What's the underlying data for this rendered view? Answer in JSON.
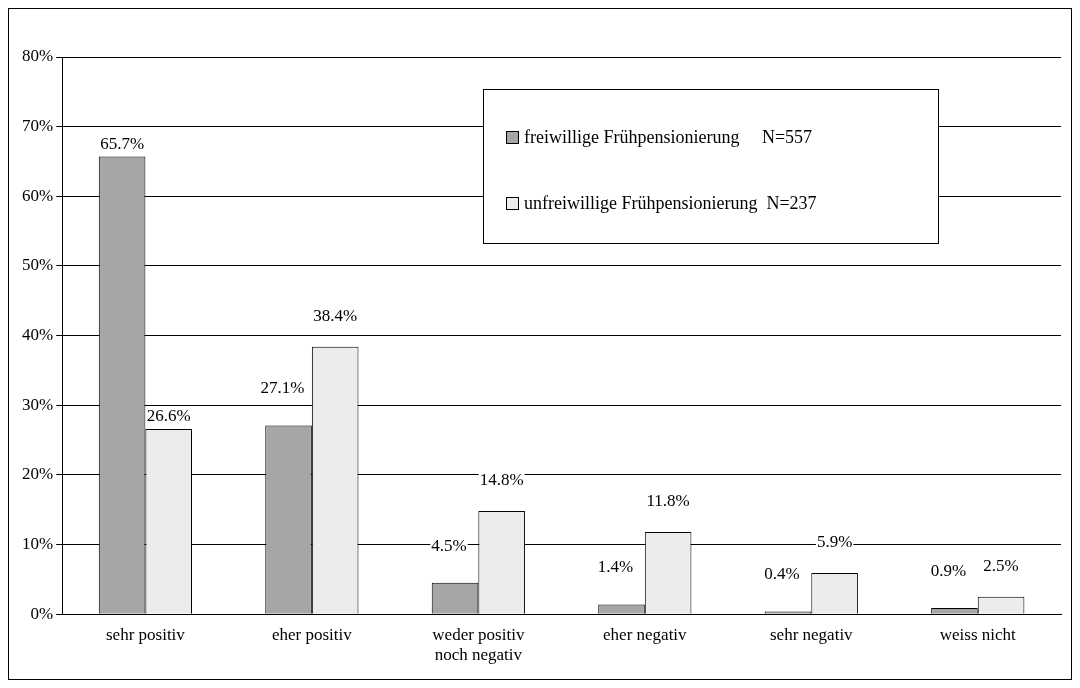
{
  "chart_data": {
    "type": "bar",
    "categories": [
      "sehr positiv",
      "eher positiv",
      "weder positiv noch negativ",
      "eher negativ",
      "sehr negativ",
      "weiss nicht"
    ],
    "series": [
      {
        "name": "freiwillige Frühpensionierung     N=557",
        "color": "#a6a6a6",
        "values": [
          65.7,
          27.1,
          4.5,
          1.4,
          0.4,
          0.9
        ],
        "value_labels": [
          "65.7%",
          "27.1%",
          "4.5%",
          "1.4%",
          "0.4%",
          "0.9%"
        ]
      },
      {
        "name": "unfreiwillige Frühpensionierung  N=237",
        "color": "#ececec",
        "values": [
          26.6,
          38.4,
          14.8,
          11.8,
          5.9,
          2.5
        ],
        "value_labels": [
          "26.6%",
          "38.4%",
          "14.8%",
          "11.8%",
          "5.9%",
          "2.5%"
        ]
      }
    ],
    "ylim": [
      0,
      80
    ],
    "yticks": [
      {
        "value": 0,
        "label": "0%"
      },
      {
        "value": 10,
        "label": "10%"
      },
      {
        "value": 20,
        "label": "20%"
      },
      {
        "value": 30,
        "label": "30%"
      },
      {
        "value": 40,
        "label": "40%"
      },
      {
        "value": 50,
        "label": "50%"
      },
      {
        "value": 60,
        "label": "60%"
      },
      {
        "value": 70,
        "label": "70%"
      },
      {
        "value": 80,
        "label": "80%"
      }
    ],
    "grid": "y",
    "legend": "top right"
  }
}
